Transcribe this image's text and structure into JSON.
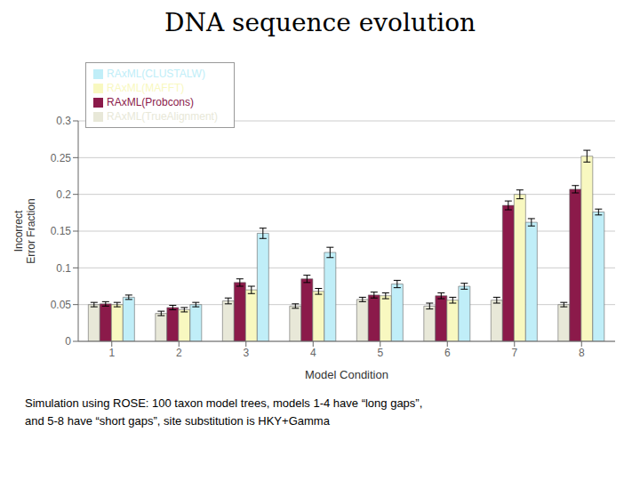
{
  "chart_data": {
    "type": "bar",
    "title": "DNA sequence evolution",
    "subtitle": "Simulation using ROSE: 100 taxon model trees, models 1-4 have “long gaps”,\nand 5-8 have “short gaps”, site substitution is HKY+Gamma",
    "xlabel": "Model Condition",
    "ylabel": "Incorrect\nError Fraction",
    "categories": [
      1,
      2,
      3,
      4,
      5,
      6,
      7,
      8
    ],
    "series": [
      {
        "name": "RAxML(TrueAlignment)",
        "color": "#e8e8d8",
        "values": [
          0.05,
          0.038,
          0.055,
          0.048,
          0.057,
          0.048,
          0.056,
          0.05
        ],
        "errors": [
          0.003,
          0.003,
          0.004,
          0.003,
          0.003,
          0.004,
          0.004,
          0.003
        ]
      },
      {
        "name": "RAxML(Probcons)",
        "color": "#8b1a4a",
        "values": [
          0.051,
          0.046,
          0.08,
          0.085,
          0.063,
          0.062,
          0.185,
          0.207
        ],
        "errors": [
          0.003,
          0.003,
          0.005,
          0.005,
          0.004,
          0.004,
          0.006,
          0.005
        ]
      },
      {
        "name": "RAxML(MAFFT)",
        "color": "#f8f8c0",
        "values": [
          0.05,
          0.043,
          0.07,
          0.068,
          0.062,
          0.056,
          0.2,
          0.252
        ],
        "errors": [
          0.003,
          0.003,
          0.005,
          0.004,
          0.004,
          0.004,
          0.006,
          0.008
        ]
      },
      {
        "name": "RAxML(CLUSTALW)",
        "color": "#c0eef8",
        "values": [
          0.06,
          0.05,
          0.147,
          0.121,
          0.078,
          0.075,
          0.162,
          0.176
        ],
        "errors": [
          0.003,
          0.003,
          0.007,
          0.007,
          0.005,
          0.004,
          0.005,
          0.004
        ]
      }
    ],
    "ylim": [
      0,
      0.3
    ],
    "yticks": [
      0,
      0.05,
      0.1,
      0.15,
      0.2,
      0.25,
      0.3
    ],
    "grid": true,
    "legend": "upper left"
  }
}
